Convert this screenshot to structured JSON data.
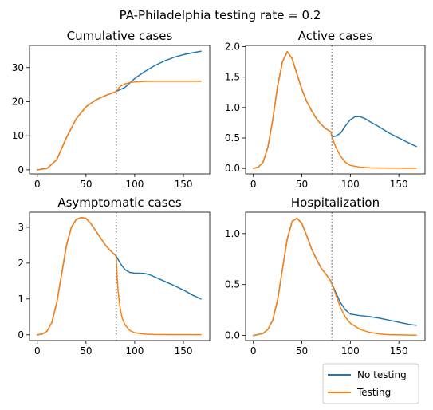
{
  "suptitle": "PA-Philadelphia testing rate = 0.2",
  "legend": {
    "placement": "bottom-right",
    "entries": [
      {
        "label": "No testing",
        "color": "#1f77b4"
      },
      {
        "label": "Testing",
        "color": "#ff7f0e"
      }
    ]
  },
  "chart_data": [
    {
      "type": "line",
      "title": "Cumulative cases",
      "xlim": [
        -8,
        177
      ],
      "ylim": [
        -1.2,
        36.5
      ],
      "xticks": [
        0,
        50,
        100,
        150
      ],
      "yticks": [
        0,
        10,
        20,
        30
      ],
      "ytick_labels": [
        "0",
        "10",
        "20",
        "30"
      ],
      "vline_x": 81,
      "grid": false,
      "series": [
        {
          "name": "No testing",
          "color": "#1f77b4",
          "x": [
            0,
            10,
            20,
            30,
            40,
            50,
            60,
            70,
            81,
            90,
            100,
            110,
            120,
            130,
            140,
            150,
            160,
            168
          ],
          "y": [
            0,
            0.4,
            3.0,
            9.5,
            15.0,
            18.5,
            20.5,
            21.8,
            23.0,
            24.2,
            26.8,
            28.8,
            30.5,
            31.9,
            33.0,
            33.8,
            34.4,
            34.8
          ]
        },
        {
          "name": "Testing",
          "color": "#ff7f0e",
          "x": [
            0,
            10,
            20,
            30,
            40,
            50,
            60,
            70,
            81,
            85,
            90,
            95,
            100,
            110,
            120,
            140,
            168
          ],
          "y": [
            0,
            0.4,
            3.0,
            9.5,
            15.0,
            18.5,
            20.5,
            21.8,
            23.0,
            24.5,
            25.2,
            25.6,
            25.8,
            25.95,
            26.0,
            26.0,
            26.0
          ]
        }
      ]
    },
    {
      "type": "line",
      "title": "Active cases",
      "xlim": [
        -8,
        177
      ],
      "ylim": [
        -0.09,
        2.02
      ],
      "xticks": [
        0,
        50,
        100,
        150
      ],
      "yticks": [
        0,
        0.5,
        1.0,
        1.5,
        2.0
      ],
      "ytick_labels": [
        "0.0",
        "0.5",
        "1.0",
        "1.5",
        "2.0"
      ],
      "vline_x": 81,
      "grid": false,
      "series": [
        {
          "name": "No testing",
          "color": "#1f77b4",
          "x": [
            0,
            5,
            10,
            15,
            20,
            25,
            30,
            35,
            40,
            45,
            50,
            55,
            60,
            65,
            70,
            75,
            80,
            81,
            85,
            90,
            95,
            100,
            105,
            110,
            115,
            120,
            130,
            140,
            150,
            160,
            168
          ],
          "y": [
            0,
            0.02,
            0.1,
            0.35,
            0.8,
            1.35,
            1.75,
            1.92,
            1.8,
            1.55,
            1.3,
            1.1,
            0.95,
            0.82,
            0.72,
            0.65,
            0.6,
            0.52,
            0.53,
            0.58,
            0.7,
            0.8,
            0.85,
            0.85,
            0.82,
            0.77,
            0.68,
            0.58,
            0.5,
            0.42,
            0.36
          ]
        },
        {
          "name": "Testing",
          "color": "#ff7f0e",
          "x": [
            0,
            5,
            10,
            15,
            20,
            25,
            30,
            35,
            40,
            45,
            50,
            55,
            60,
            65,
            70,
            75,
            80,
            81,
            85,
            90,
            95,
            100,
            110,
            120,
            140,
            168
          ],
          "y": [
            0,
            0.02,
            0.1,
            0.35,
            0.8,
            1.35,
            1.75,
            1.92,
            1.8,
            1.55,
            1.3,
            1.1,
            0.95,
            0.82,
            0.72,
            0.65,
            0.6,
            0.52,
            0.35,
            0.2,
            0.1,
            0.05,
            0.02,
            0.01,
            0.005,
            0.003
          ]
        }
      ]
    },
    {
      "type": "line",
      "title": "Asymptomatic cases",
      "xlim": [
        -8,
        177
      ],
      "ylim": [
        -0.16,
        3.42
      ],
      "xticks": [
        0,
        50,
        100,
        150
      ],
      "yticks": [
        0,
        1,
        2,
        3
      ],
      "ytick_labels": [
        "0",
        "1",
        "2",
        "3"
      ],
      "vline_x": 81,
      "grid": false,
      "series": [
        {
          "name": "No testing",
          "color": "#1f77b4",
          "x": [
            0,
            5,
            10,
            15,
            20,
            25,
            30,
            35,
            40,
            45,
            50,
            55,
            60,
            65,
            70,
            75,
            80,
            81,
            85,
            90,
            95,
            100,
            105,
            110,
            115,
            120,
            130,
            140,
            150,
            160,
            168
          ],
          "y": [
            0,
            0.02,
            0.1,
            0.35,
            0.9,
            1.7,
            2.5,
            3.0,
            3.22,
            3.27,
            3.25,
            3.1,
            2.9,
            2.7,
            2.5,
            2.35,
            2.22,
            2.2,
            2.0,
            1.82,
            1.74,
            1.72,
            1.72,
            1.71,
            1.68,
            1.62,
            1.5,
            1.38,
            1.25,
            1.1,
            1.0
          ]
        },
        {
          "name": "Testing",
          "color": "#ff7f0e",
          "x": [
            0,
            5,
            10,
            15,
            20,
            25,
            30,
            35,
            40,
            45,
            50,
            55,
            60,
            65,
            70,
            75,
            80,
            81,
            82,
            83,
            85,
            87,
            90,
            95,
            100,
            110,
            120,
            140,
            168
          ],
          "y": [
            0,
            0.02,
            0.1,
            0.35,
            0.9,
            1.7,
            2.5,
            3.0,
            3.22,
            3.27,
            3.25,
            3.1,
            2.9,
            2.7,
            2.5,
            2.35,
            2.22,
            2.18,
            1.6,
            1.2,
            0.75,
            0.48,
            0.28,
            0.12,
            0.06,
            0.02,
            0.01,
            0.005,
            0.003
          ]
        }
      ]
    },
    {
      "type": "line",
      "title": "Hospitalization",
      "xlim": [
        -8,
        177
      ],
      "ylim": [
        -0.05,
        1.21
      ],
      "xticks": [
        0,
        50,
        100,
        150
      ],
      "yticks": [
        0,
        0.5,
        1.0
      ],
      "ytick_labels": [
        "0.0",
        "0.5",
        "1.0"
      ],
      "vline_x": 81,
      "grid": false,
      "series": [
        {
          "name": "No testing",
          "color": "#1f77b4",
          "x": [
            0,
            10,
            15,
            20,
            25,
            30,
            35,
            40,
            45,
            50,
            55,
            60,
            65,
            70,
            75,
            80,
            85,
            90,
            95,
            100,
            110,
            120,
            130,
            140,
            150,
            160,
            168
          ],
          "y": [
            0,
            0.02,
            0.06,
            0.15,
            0.35,
            0.65,
            0.95,
            1.12,
            1.15,
            1.1,
            0.98,
            0.85,
            0.75,
            0.66,
            0.6,
            0.53,
            0.42,
            0.32,
            0.25,
            0.21,
            0.195,
            0.185,
            0.17,
            0.15,
            0.13,
            0.11,
            0.1
          ]
        },
        {
          "name": "Testing",
          "color": "#ff7f0e",
          "x": [
            0,
            10,
            15,
            20,
            25,
            30,
            35,
            40,
            45,
            50,
            55,
            60,
            65,
            70,
            75,
            80,
            85,
            90,
            95,
            100,
            110,
            120,
            130,
            140,
            168
          ],
          "y": [
            0,
            0.02,
            0.06,
            0.15,
            0.35,
            0.65,
            0.95,
            1.12,
            1.15,
            1.1,
            0.98,
            0.85,
            0.75,
            0.66,
            0.6,
            0.53,
            0.4,
            0.27,
            0.18,
            0.12,
            0.06,
            0.03,
            0.015,
            0.008,
            0.003
          ]
        }
      ]
    }
  ]
}
